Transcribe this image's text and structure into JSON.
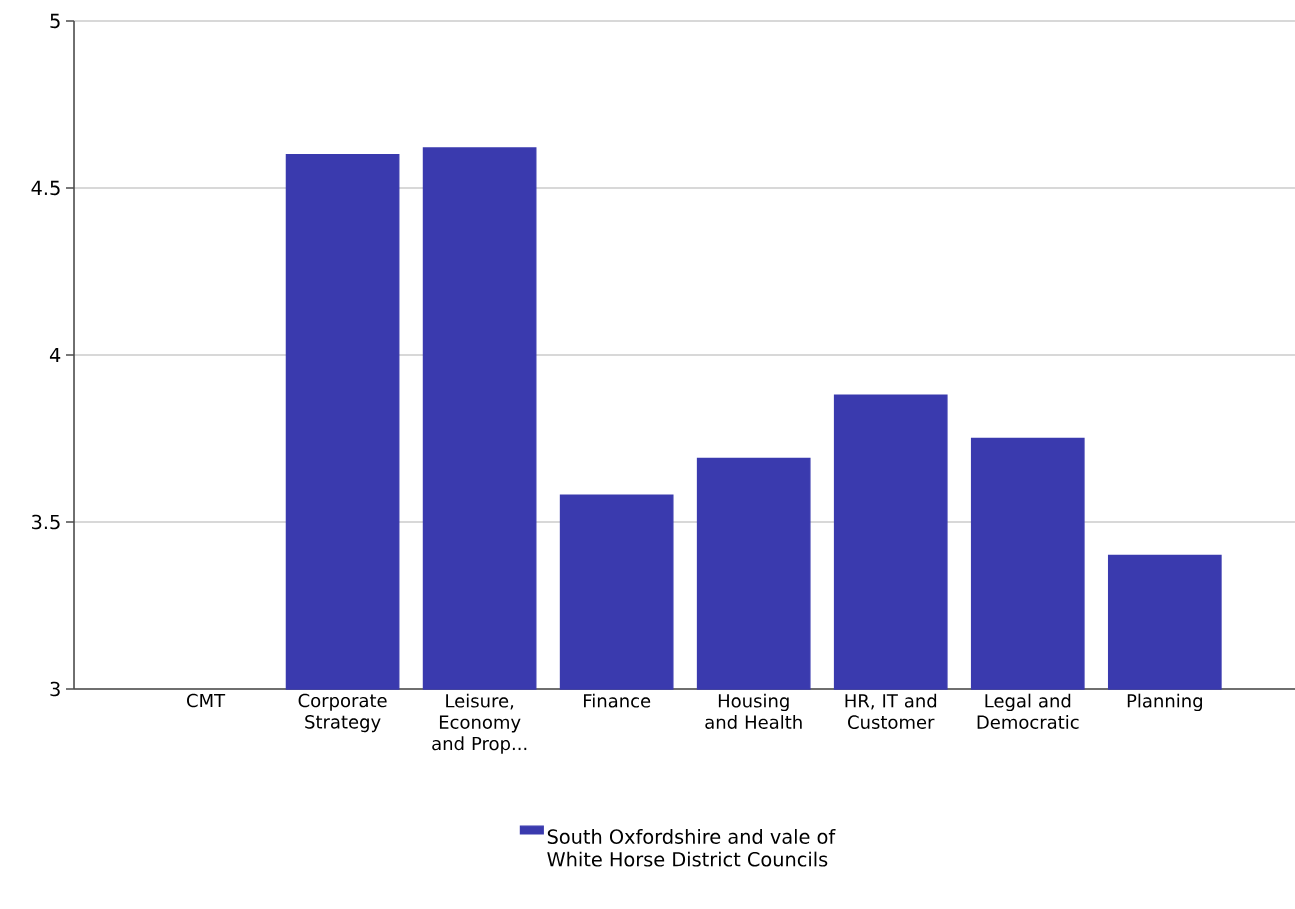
{
  "chart_data": {
    "type": "bar",
    "categories": [
      "CMT",
      "Corporate Strategy",
      "Leisure, Economy and Prop...",
      "Finance",
      "Housing and Health",
      "HR, IT and Customer",
      "Legal and Democratic",
      "Planning"
    ],
    "series": [
      {
        "name": "South Oxfordshire and vale of White Horse District Councils",
        "color": "#3a3aae",
        "values": [
          null,
          4.6,
          4.62,
          3.58,
          3.69,
          3.88,
          3.75,
          3.4
        ]
      }
    ],
    "ylim": [
      3,
      5
    ],
    "yticks": [
      3,
      3.5,
      4,
      4.5,
      5
    ],
    "grid": "y",
    "legend": "bottom"
  }
}
